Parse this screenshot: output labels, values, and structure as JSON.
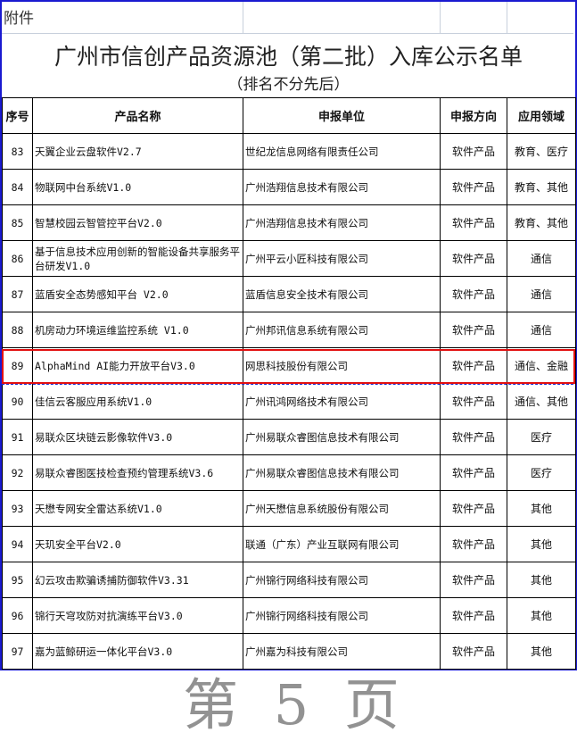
{
  "attachment_label": "附件",
  "title": "广州市信创产品资源池（第二批）入库公示名单",
  "subtitle": "（排名不分先后）",
  "columns": [
    "序号",
    "产品名称",
    "申报单位",
    "申报方向",
    "应用领域"
  ],
  "rows": [
    {
      "no": "83",
      "product": "天翼企业云盘软件V2.7",
      "company": "世纪龙信息网络有限责任公司",
      "direction": "软件产品",
      "field": "教育、医疗"
    },
    {
      "no": "84",
      "product": "物联网中台系统V1.0",
      "company": "广州浩翔信息技术有限公司",
      "direction": "软件产品",
      "field": "教育、其他"
    },
    {
      "no": "85",
      "product": "智慧校园云智管控平台V2.0",
      "company": "广州浩翔信息技术有限公司",
      "direction": "软件产品",
      "field": "教育、其他"
    },
    {
      "no": "86",
      "product": "基于信息技术应用创新的智能设备共享服务平台研发V1.0",
      "company": "广州平云小匠科技有限公司",
      "direction": "软件产品",
      "field": "通信"
    },
    {
      "no": "87",
      "product": "蓝盾安全态势感知平台 V2.0",
      "company": "蓝盾信息安全技术有限公司",
      "direction": "软件产品",
      "field": "通信"
    },
    {
      "no": "88",
      "product": "机房动力环境运维监控系统 V1.0",
      "company": "广州邦讯信息系统有限公司",
      "direction": "软件产品",
      "field": "通信"
    },
    {
      "no": "89",
      "product": "AlphaMind AI能力开放平台V3.0",
      "company": "网思科技股份有限公司",
      "direction": "软件产品",
      "field": "通信、金融",
      "highlighted": true
    },
    {
      "no": "90",
      "product": "佳信云客服应用系统V1.0",
      "company": "广州讯鸿网络技术有限公司",
      "direction": "软件产品",
      "field": "通信、其他"
    },
    {
      "no": "91",
      "product": "易联众区块链云影像软件V3.0",
      "company": "广州易联众睿图信息技术有限公司",
      "direction": "软件产品",
      "field": "医疗"
    },
    {
      "no": "92",
      "product": "易联众睿图医技检查预约管理系统V3.6",
      "company": "广州易联众睿图信息技术有限公司",
      "direction": "软件产品",
      "field": "医疗"
    },
    {
      "no": "93",
      "product": "天懋专网安全雷达系统V1.0",
      "company": "广州天懋信息系统股份有限公司",
      "direction": "软件产品",
      "field": "其他"
    },
    {
      "no": "94",
      "product": "天玑安全平台V2.0",
      "company": "联通（广东）产业互联网有限公司",
      "direction": "软件产品",
      "field": "其他"
    },
    {
      "no": "95",
      "product": "幻云攻击欺骗诱捕防御软件V3.31",
      "company": "广州锦行网络科技有限公司",
      "direction": "软件产品",
      "field": "其他"
    },
    {
      "no": "96",
      "product": "锦行天穹攻防对抗演练平台V3.0",
      "company": "广州锦行网络科技有限公司",
      "direction": "软件产品",
      "field": "其他"
    },
    {
      "no": "97",
      "product": "嘉为蓝鲸研运一体化平台V3.0",
      "company": "广州嘉为科技有限公司",
      "direction": "软件产品",
      "field": "其他"
    }
  ],
  "watermark": "第 5 页",
  "colors": {
    "highlight": "#e21010",
    "frame": "#1a1ad0"
  }
}
